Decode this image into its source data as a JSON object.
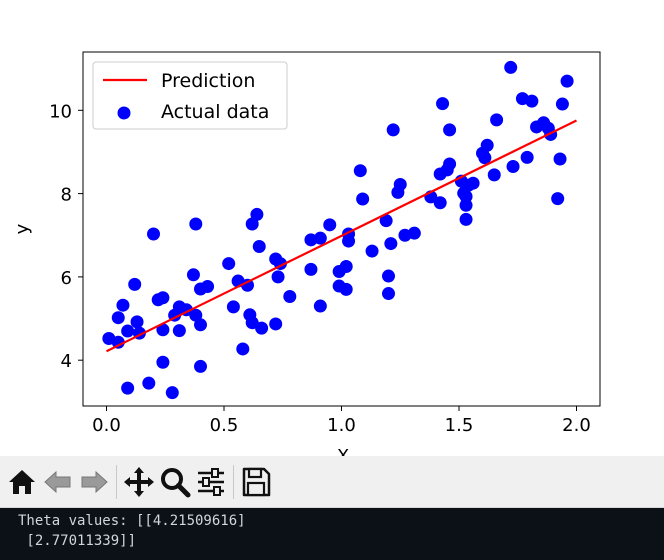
{
  "chart_data": {
    "type": "scatter",
    "xlabel": "X",
    "ylabel": "y",
    "xlim": [
      -0.1,
      2.1
    ],
    "ylim": [
      2.9,
      11.4
    ],
    "x_ticks": [
      0.0,
      0.5,
      1.0,
      1.5,
      2.0
    ],
    "x_tick_labels": [
      "0.0",
      "0.5",
      "1.0",
      "1.5",
      "2.0"
    ],
    "y_ticks": [
      4,
      6,
      8,
      10
    ],
    "y_tick_labels": [
      "4",
      "6",
      "8",
      "10"
    ],
    "legend_position": "top-left",
    "series": [
      {
        "name": "Prediction",
        "kind": "line",
        "color": "#ff0000",
        "x": [
          0.0,
          2.0
        ],
        "y": [
          4.21509616,
          9.75532294
        ]
      },
      {
        "name": "Actual data",
        "kind": "scatter",
        "color": "#0000ff",
        "points": [
          [
            0.01,
            4.52
          ],
          [
            0.05,
            4.43
          ],
          [
            0.05,
            5.02
          ],
          [
            0.07,
            5.32
          ],
          [
            0.09,
            3.33
          ],
          [
            0.09,
            4.7
          ],
          [
            0.12,
            5.82
          ],
          [
            0.13,
            4.92
          ],
          [
            0.14,
            4.65
          ],
          [
            0.18,
            3.45
          ],
          [
            0.2,
            7.03
          ],
          [
            0.22,
            5.45
          ],
          [
            0.24,
            5.5
          ],
          [
            0.24,
            4.73
          ],
          [
            0.24,
            3.95
          ],
          [
            0.28,
            3.22
          ],
          [
            0.29,
            5.08
          ],
          [
            0.31,
            4.71
          ],
          [
            0.31,
            5.28
          ],
          [
            0.34,
            5.21
          ],
          [
            0.37,
            6.05
          ],
          [
            0.38,
            7.27
          ],
          [
            0.38,
            5.08
          ],
          [
            0.4,
            5.71
          ],
          [
            0.4,
            4.85
          ],
          [
            0.4,
            3.85
          ],
          [
            0.43,
            5.77
          ],
          [
            0.52,
            6.32
          ],
          [
            0.54,
            5.28
          ],
          [
            0.56,
            5.9
          ],
          [
            0.58,
            4.27
          ],
          [
            0.6,
            5.8
          ],
          [
            0.61,
            5.09
          ],
          [
            0.62,
            7.27
          ],
          [
            0.62,
            4.9
          ],
          [
            0.64,
            7.5
          ],
          [
            0.65,
            6.73
          ],
          [
            0.66,
            4.77
          ],
          [
            0.72,
            4.87
          ],
          [
            0.72,
            6.43
          ],
          [
            0.74,
            6.32
          ],
          [
            0.73,
            6.0
          ],
          [
            0.78,
            5.53
          ],
          [
            0.87,
            6.18
          ],
          [
            0.87,
            6.89
          ],
          [
            0.91,
            6.93
          ],
          [
            0.91,
            5.3
          ],
          [
            0.95,
            7.25
          ],
          [
            0.99,
            6.13
          ],
          [
            0.99,
            5.78
          ],
          [
            1.02,
            6.25
          ],
          [
            1.02,
            5.7
          ],
          [
            1.03,
            7.03
          ],
          [
            1.03,
            6.86
          ],
          [
            1.08,
            8.55
          ],
          [
            1.09,
            7.87
          ],
          [
            1.13,
            6.62
          ],
          [
            1.19,
            7.35
          ],
          [
            1.2,
            6.02
          ],
          [
            1.2,
            5.6
          ],
          [
            1.21,
            6.8
          ],
          [
            1.22,
            9.53
          ],
          [
            1.24,
            8.03
          ],
          [
            1.25,
            8.22
          ],
          [
            1.27,
            7.0
          ],
          [
            1.31,
            7.05
          ],
          [
            1.38,
            7.92
          ],
          [
            1.42,
            7.78
          ],
          [
            1.42,
            8.47
          ],
          [
            1.43,
            10.16
          ],
          [
            1.45,
            8.57
          ],
          [
            1.46,
            9.53
          ],
          [
            1.46,
            8.71
          ],
          [
            1.51,
            8.3
          ],
          [
            1.52,
            8.01
          ],
          [
            1.53,
            7.93
          ],
          [
            1.53,
            7.72
          ],
          [
            1.53,
            7.38
          ],
          [
            1.54,
            8.2
          ],
          [
            1.56,
            8.25
          ],
          [
            1.6,
            8.97
          ],
          [
            1.61,
            8.86
          ],
          [
            1.62,
            9.16
          ],
          [
            1.65,
            8.45
          ],
          [
            1.66,
            9.77
          ],
          [
            1.72,
            11.03
          ],
          [
            1.73,
            8.65
          ],
          [
            1.77,
            10.28
          ],
          [
            1.79,
            8.87
          ],
          [
            1.81,
            10.22
          ],
          [
            1.83,
            9.6
          ],
          [
            1.86,
            9.7
          ],
          [
            1.88,
            9.57
          ],
          [
            1.89,
            9.42
          ],
          [
            1.92,
            7.88
          ],
          [
            1.93,
            8.83
          ],
          [
            1.94,
            10.15
          ],
          [
            1.96,
            10.7
          ]
        ]
      }
    ]
  },
  "toolbar": {
    "buttons": [
      {
        "name": "home-button",
        "icon": "home-icon"
      },
      {
        "name": "back-button",
        "icon": "arrow-left-icon"
      },
      {
        "name": "forward-button",
        "icon": "arrow-right-icon"
      },
      {
        "name": "pan-button",
        "icon": "move-icon"
      },
      {
        "name": "zoom-button",
        "icon": "magnifier-icon"
      },
      {
        "name": "configure-subplots-button",
        "icon": "sliders-icon"
      },
      {
        "name": "save-button",
        "icon": "floppy-disk-icon"
      }
    ]
  },
  "console": {
    "line1": "Theta values: [[4.21509616]",
    "line2": " [2.77011339]]"
  }
}
